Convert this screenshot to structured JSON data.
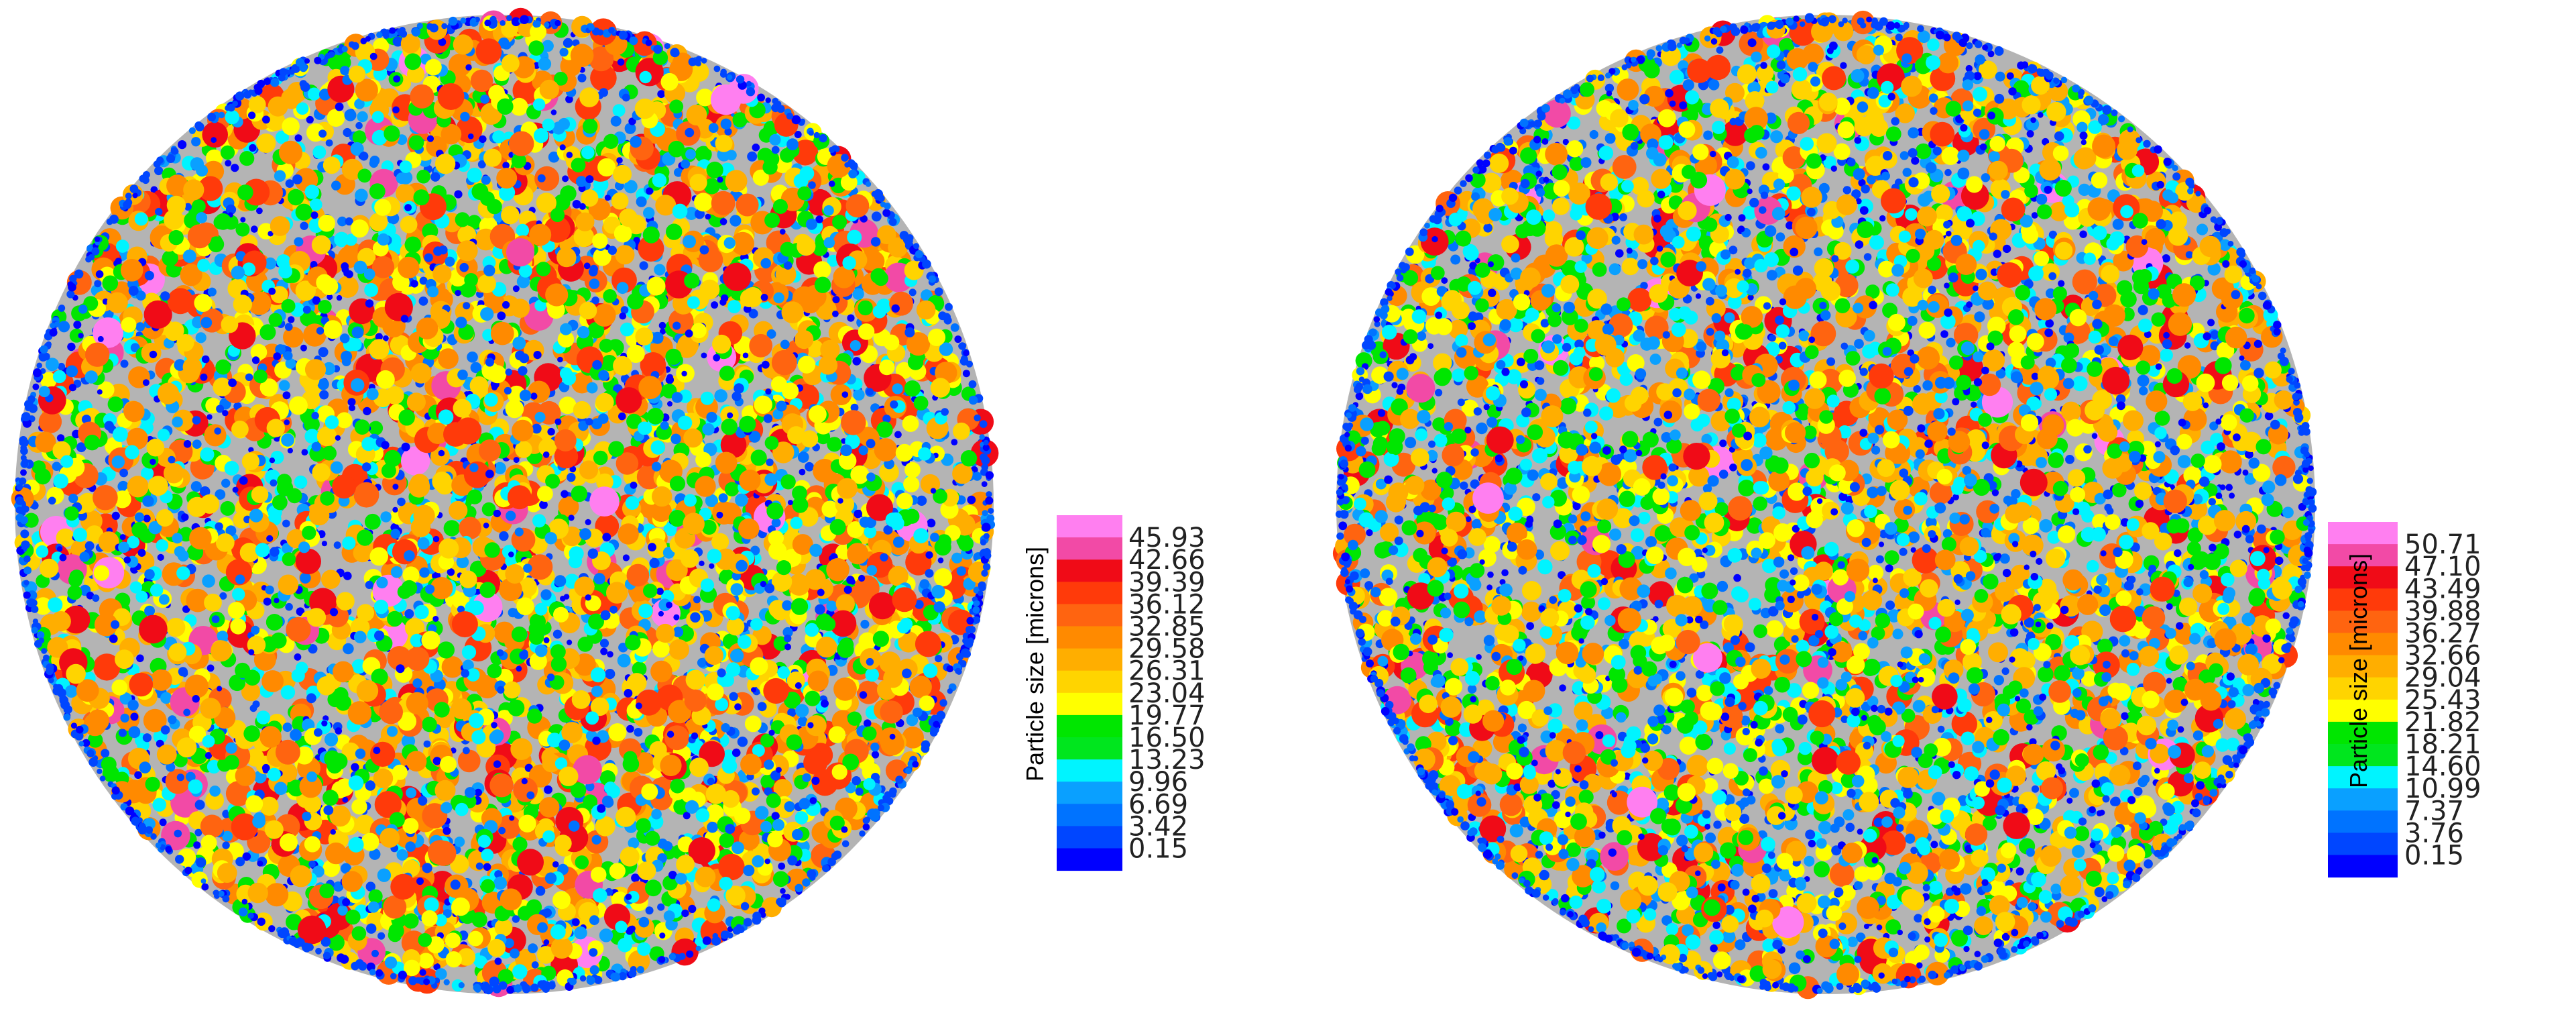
{
  "panels": [
    {
      "id": "left",
      "legend_title": "Particle size [microns]",
      "ticks": [
        "45.93",
        "42.66",
        "39.39",
        "36.12",
        "32.85",
        "29.58",
        "26.31",
        "23.04",
        "19.77",
        "16.50",
        "13.23",
        "9.96",
        "6.69",
        "3.42",
        "0.15"
      ],
      "band_colors": [
        "#ff7ff0",
        "#f24aa6",
        "#f00b17",
        "#ff3a0a",
        "#ff6410",
        "#ff8a00",
        "#ffae00",
        "#ffd400",
        "#ffff00",
        "#00e600",
        "#00e61e",
        "#00f4ff",
        "#0aa0ff",
        "#0073ff",
        "#0046ff",
        "#0000ff"
      ]
    },
    {
      "id": "right",
      "legend_title": "Particle size [microns]",
      "ticks": [
        "50.71",
        "47.10",
        "43.49",
        "39.88",
        "36.27",
        "32.66",
        "29.04",
        "25.43",
        "21.82",
        "18.21",
        "14.60",
        "10.99",
        "7.37",
        "3.76",
        "0.15"
      ],
      "band_colors": [
        "#ff7ff0",
        "#f24aa6",
        "#f00b17",
        "#ff3a0a",
        "#ff6410",
        "#ff8a00",
        "#ffae00",
        "#ffd400",
        "#ffff00",
        "#00e600",
        "#00e61e",
        "#00f4ff",
        "#0aa0ff",
        "#0073ff",
        "#0046ff",
        "#0000ff"
      ]
    }
  ],
  "palette": {
    "background_gray": "#b4b4b4",
    "particle_colors": [
      "#0000ff",
      "#0046ff",
      "#0073ff",
      "#0aa0ff",
      "#00f4ff",
      "#00e600",
      "#ffff00",
      "#ffd400",
      "#ffae00",
      "#ff8a00",
      "#ff6410",
      "#ff3a0a",
      "#f00b17",
      "#f24aa6",
      "#ff7ff0"
    ],
    "left_weights": [
      14,
      10,
      9,
      8,
      10,
      13,
      9,
      9,
      8,
      7,
      4,
      3,
      2,
      0.6,
      0.4
    ],
    "right_weights": [
      16,
      12,
      11,
      10,
      11,
      13,
      8,
      8,
      7,
      5,
      3,
      2,
      1.2,
      0.4,
      0.3
    ]
  }
}
